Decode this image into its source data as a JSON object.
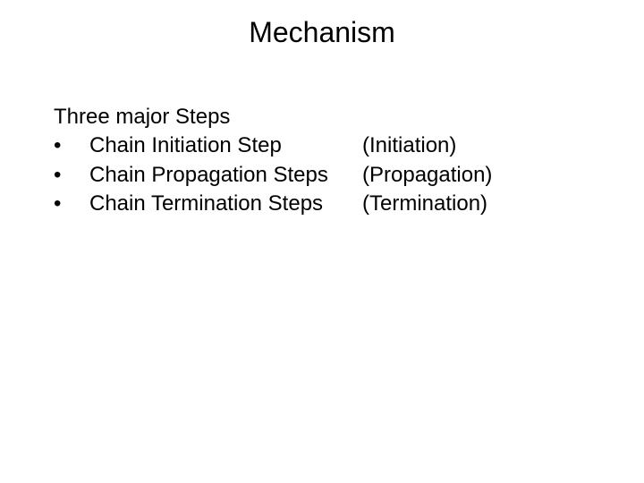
{
  "slide": {
    "title": "Mechanism",
    "intro": "Three major Steps",
    "bullets": [
      {
        "marker": "•",
        "text": "Chain Initiation Step",
        "paren": "(Initiation)"
      },
      {
        "marker": "•",
        "text": "Chain Propagation Steps",
        "paren": "(Propagation)"
      },
      {
        "marker": "•",
        "text": "Chain Termination Steps",
        "paren": "(Termination)"
      }
    ]
  },
  "style": {
    "background_color": "#ffffff",
    "text_color": "#000000",
    "title_fontsize": 32,
    "body_fontsize": 24,
    "font_family": "Arial"
  }
}
